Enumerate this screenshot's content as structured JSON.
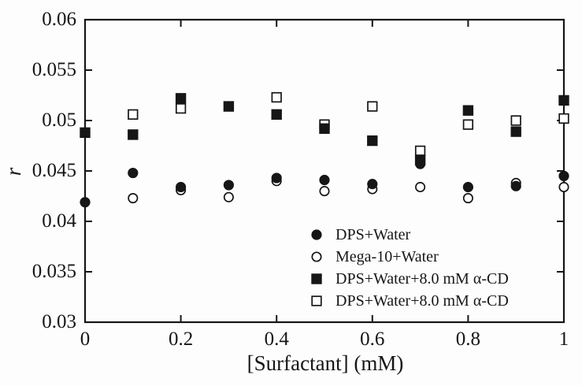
{
  "figure": {
    "background": "#fdfdfd",
    "ink": "#161616"
  },
  "chart_data": {
    "type": "scatter",
    "title": "",
    "xlabel": "[Surfactant] (mM)",
    "ylabel": "r",
    "xlim": [
      0,
      1
    ],
    "ylim": [
      0.03,
      0.06
    ],
    "x_ticks": [
      0,
      0.2,
      0.4,
      0.6,
      0.8,
      1
    ],
    "x_tick_labels": [
      "0",
      "0.2",
      "0.4",
      "0.6",
      "0.8",
      "1"
    ],
    "y_ticks": [
      0.03,
      0.035,
      0.04,
      0.045,
      0.05,
      0.055,
      0.06
    ],
    "y_tick_labels": [
      "0.03",
      "0.035",
      "0.04",
      "0.045",
      "0.05",
      "0.055",
      "0.06"
    ],
    "grid": false,
    "legend_position": "inside lower-right",
    "series": [
      {
        "name": "DPS+Water",
        "marker": "filled-circle",
        "points": [
          [
            0,
            0.0419
          ],
          [
            0.1,
            0.0448
          ],
          [
            0.2,
            0.0434
          ],
          [
            0.3,
            0.0436
          ],
          [
            0.4,
            0.0443
          ],
          [
            0.5,
            0.0441
          ],
          [
            0.6,
            0.0437
          ],
          [
            0.7,
            0.0457
          ],
          [
            0.8,
            0.0434
          ],
          [
            0.9,
            0.0435
          ],
          [
            1.0,
            0.0445
          ]
        ]
      },
      {
        "name": "Mega-10+Water",
        "marker": "open-circle",
        "points": [
          [
            0.1,
            0.0423
          ],
          [
            0.2,
            0.0431
          ],
          [
            0.3,
            0.0424
          ],
          [
            0.4,
            0.044
          ],
          [
            0.5,
            0.043
          ],
          [
            0.6,
            0.0432
          ],
          [
            0.7,
            0.0434
          ],
          [
            0.8,
            0.0423
          ],
          [
            0.9,
            0.0438
          ],
          [
            1.0,
            0.0434
          ]
        ]
      },
      {
        "name": "DPS+Water+8.0 mM α-CD",
        "marker": "filled-square",
        "points": [
          [
            0,
            0.0488
          ],
          [
            0.1,
            0.0486
          ],
          [
            0.2,
            0.0522
          ],
          [
            0.3,
            0.0514
          ],
          [
            0.4,
            0.0506
          ],
          [
            0.5,
            0.0492
          ],
          [
            0.6,
            0.048
          ],
          [
            0.7,
            0.0461
          ],
          [
            0.8,
            0.051
          ],
          [
            0.9,
            0.0489
          ],
          [
            1.0,
            0.052
          ]
        ]
      },
      {
        "name": "DPS+Water+8.0 mM α-CD",
        "marker": "open-square",
        "points": [
          [
            0.1,
            0.0506
          ],
          [
            0.2,
            0.0512
          ],
          [
            0.4,
            0.0523
          ],
          [
            0.5,
            0.0496
          ],
          [
            0.6,
            0.0514
          ],
          [
            0.7,
            0.047
          ],
          [
            0.8,
            0.0496
          ],
          [
            0.9,
            0.05
          ],
          [
            1.0,
            0.0502
          ]
        ]
      }
    ]
  }
}
